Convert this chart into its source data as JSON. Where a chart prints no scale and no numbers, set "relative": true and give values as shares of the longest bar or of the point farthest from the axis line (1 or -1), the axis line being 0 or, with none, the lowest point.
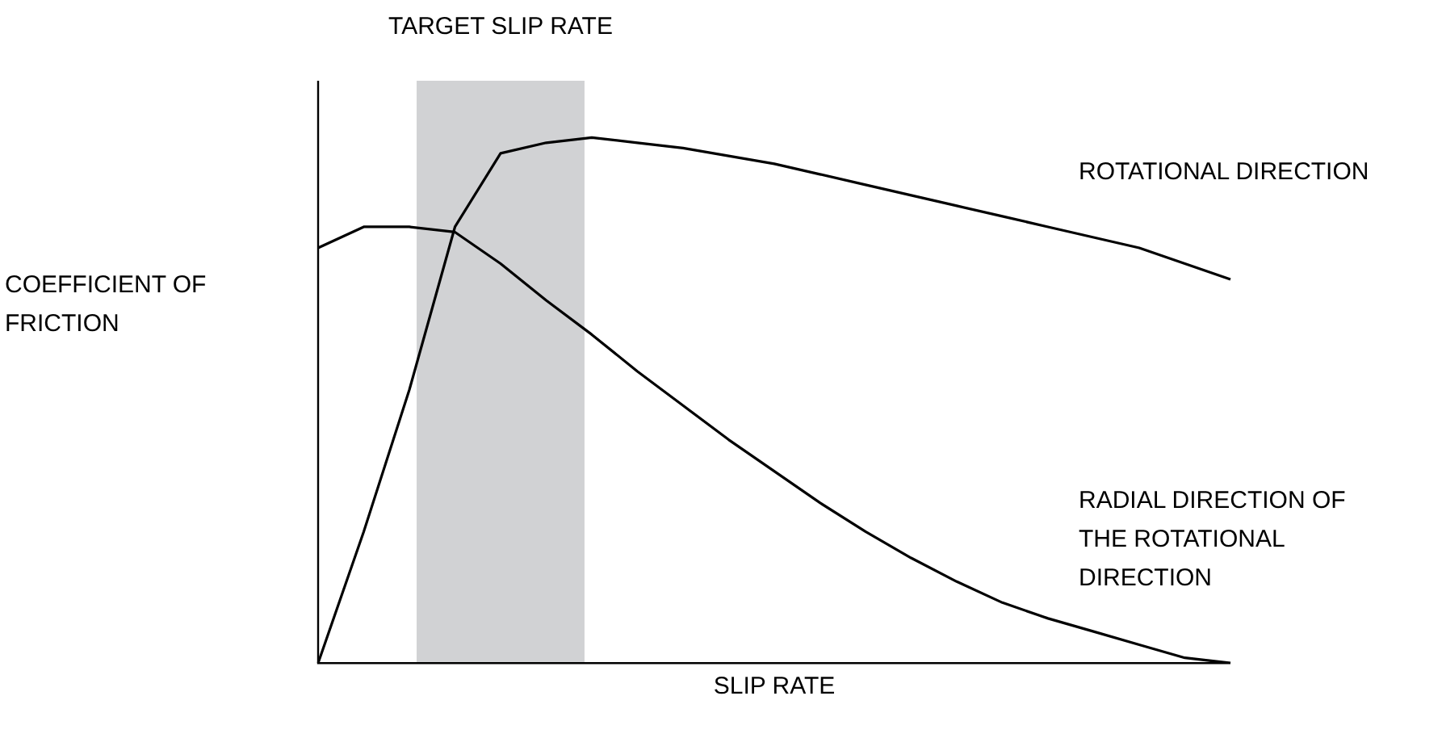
{
  "chart_data": {
    "type": "line",
    "relative": true,
    "xlabel": "SLIP RATE",
    "ylabel": "COEFFICIENT OF FRICTION",
    "categories": [
      null,
      null,
      null,
      null,
      null,
      null,
      null,
      null,
      null,
      null,
      null,
      null,
      null,
      null,
      null,
      null,
      null,
      null,
      null,
      null,
      null
    ],
    "legend": false,
    "marker": "none",
    "line_style": "solid",
    "annotations": [
      "TARGET SLIP RATE"
    ],
    "series": [
      {
        "name": "ROTATIONAL DIRECTION",
        "color": "#000000",
        "values": [
          0,
          0.25,
          0.52,
          0.83,
          0.97,
          0.99,
          1,
          0.99,
          0.98,
          0.965,
          0.95,
          0.93,
          0.91,
          0.89,
          0.87,
          0.85,
          0.83,
          0.81,
          0.79,
          0.76,
          0.73
        ]
      },
      {
        "name": "RADIAL DIRECTION OF THE ROTATIONAL DIRECTION",
        "color": "#000000",
        "values": [
          0.79,
          0.83,
          0.83,
          0.82,
          0.76,
          0.69,
          0.625,
          0.555,
          0.49,
          0.425,
          0.365,
          0.305,
          0.25,
          0.2,
          0.155,
          0.115,
          0.085,
          0.06,
          0.035,
          0.01,
          0
        ]
      }
    ]
  }
}
